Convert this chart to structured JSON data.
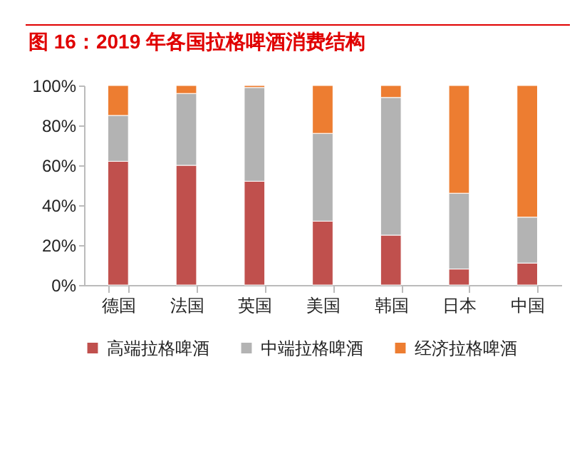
{
  "chart_data": {
    "type": "bar",
    "title": "图 16：2019 年各国拉格啤酒消费结构",
    "stacked": true,
    "categories": [
      "德国",
      "法国",
      "英国",
      "美国",
      "韩国",
      "日本",
      "中国"
    ],
    "series": [
      {
        "name": "高端拉格啤酒",
        "color": "#c0504d",
        "values": [
          62,
          60,
          52,
          32,
          25,
          8,
          11
        ]
      },
      {
        "name": "中端拉格啤酒",
        "color": "#b3b3b3",
        "values": [
          23,
          36,
          47,
          44,
          69,
          38,
          23
        ]
      },
      {
        "name": "经济拉格啤酒",
        "color": "#ed7d31",
        "values": [
          15,
          4,
          1,
          24,
          6,
          54,
          66
        ]
      }
    ],
    "ylim": [
      0,
      100
    ],
    "yticks": [
      {
        "value": 0,
        "label": "0%"
      },
      {
        "value": 20,
        "label": "20%"
      },
      {
        "value": 40,
        "label": "40%"
      },
      {
        "value": 60,
        "label": "60%"
      },
      {
        "value": 80,
        "label": "80%"
      },
      {
        "value": 100,
        "label": "100%"
      }
    ],
    "grid": false,
    "legend": "bottom"
  }
}
